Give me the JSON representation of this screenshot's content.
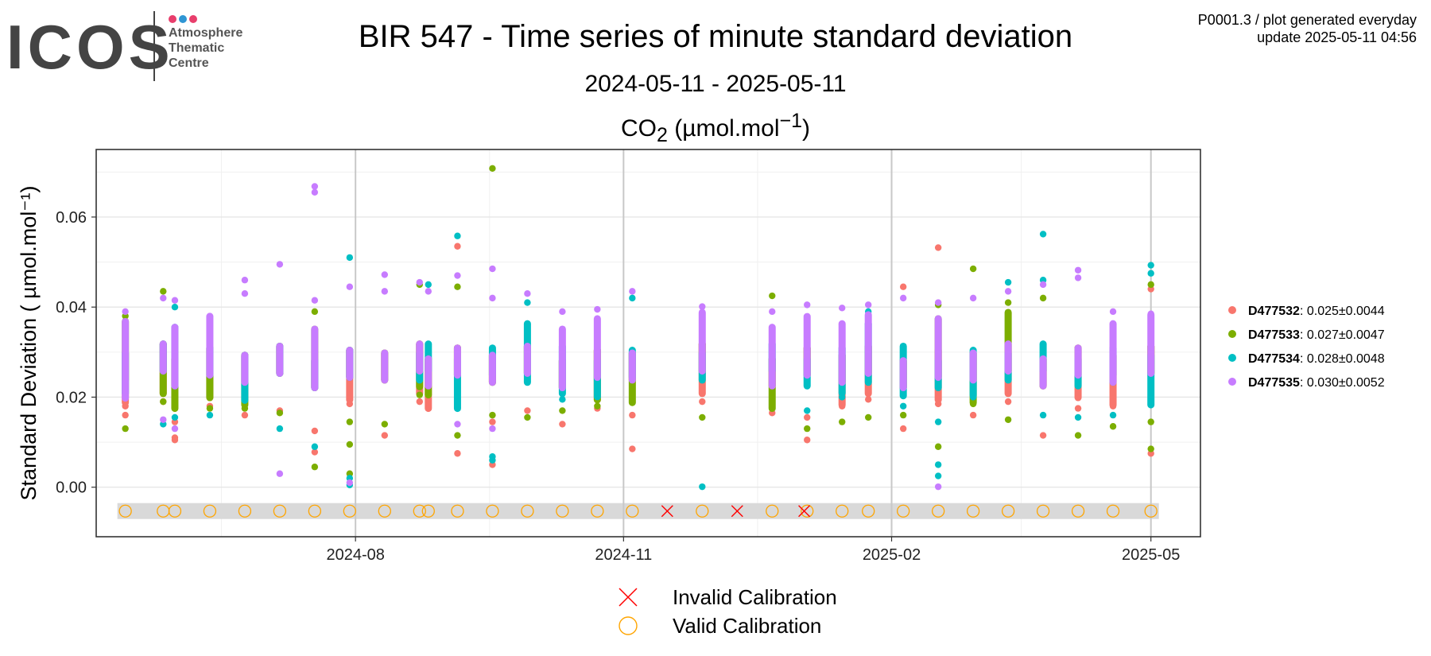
{
  "logo": {
    "text": "ICOS",
    "sub_lines": [
      "Atmosphere",
      "Thematic",
      "Centre"
    ],
    "dot_colors": [
      "#e83e6c",
      "#2f96d4",
      "#e83e6c"
    ]
  },
  "header": {
    "title": "BIR 547 - Time series of minute standard deviation",
    "date_range": "2024-05-11 - 2025-05-11",
    "gas_label": "CO",
    "gas_sub": "2",
    "gas_unit_pre": " (µmol.mol",
    "gas_unit_sup": "−1",
    "gas_unit_post": ")",
    "meta_line1": "P0001.3 / plot generated everyday",
    "meta_line2": "update  2025-05-11 04:56"
  },
  "chart_data": {
    "type": "scatter",
    "title": "BIR 547 - Time series of minute standard deviation",
    "ylabel": "Standard Deviation ( µmol.mol⁻¹)",
    "xlabel": "",
    "x_range": [
      "2024-05-11",
      "2025-05-11"
    ],
    "ylim": [
      -0.011,
      0.075
    ],
    "yticks": [
      0.0,
      0.02,
      0.04,
      0.06
    ],
    "ytick_labels": [
      "0.00",
      "0.02",
      "0.04",
      "0.06"
    ],
    "xticks": [
      "2024-08-01",
      "2024-11-01",
      "2025-02-01",
      "2025-05-01"
    ],
    "xtick_labels": [
      "2024-08",
      "2024-11",
      "2025-02",
      "2025-05"
    ],
    "grid": true,
    "legend_position": "right",
    "series": [
      {
        "name": "D477532",
        "stat": ": 0.025±0.0044",
        "color": "#f8766d",
        "points": [
          [
            "2024-05-14",
            0.018
          ],
          [
            "2024-05-14",
            0.016
          ],
          [
            "2024-05-27",
            0.019
          ],
          [
            "2024-05-31",
            0.011
          ],
          [
            "2024-05-31",
            0.0105
          ],
          [
            "2024-05-31",
            0.0145
          ],
          [
            "2024-06-12",
            0.018
          ],
          [
            "2024-06-24",
            0.016
          ],
          [
            "2024-07-06",
            0.017
          ],
          [
            "2024-07-18",
            0.0078
          ],
          [
            "2024-07-18",
            0.0125
          ],
          [
            "2024-07-30",
            0.0185
          ],
          [
            "2024-08-11",
            0.0115
          ],
          [
            "2024-08-23",
            0.019
          ],
          [
            "2024-08-26",
            0.018
          ],
          [
            "2024-09-05",
            0.0535
          ],
          [
            "2024-09-05",
            0.0075
          ],
          [
            "2024-09-17",
            0.005
          ],
          [
            "2024-09-17",
            0.0145
          ],
          [
            "2024-09-29",
            0.017
          ],
          [
            "2024-10-11",
            0.014
          ],
          [
            "2024-10-23",
            0.0175
          ],
          [
            "2024-11-04",
            0.0085
          ],
          [
            "2024-11-04",
            0.016
          ],
          [
            "2024-11-28",
            0.019
          ],
          [
            "2024-12-22",
            0.0165
          ],
          [
            "2025-01-03",
            0.0105
          ],
          [
            "2025-01-03",
            0.0155
          ],
          [
            "2025-01-15",
            0.018
          ],
          [
            "2025-01-24",
            0.0195
          ],
          [
            "2025-02-05",
            0.013
          ],
          [
            "2025-02-05",
            0.0445
          ],
          [
            "2025-02-17",
            0.0532
          ],
          [
            "2025-02-17",
            0.0185
          ],
          [
            "2025-03-01",
            0.016
          ],
          [
            "2025-03-13",
            0.019
          ],
          [
            "2025-03-25",
            0.0115
          ],
          [
            "2025-04-06",
            0.0175
          ],
          [
            "2025-04-18",
            0.018
          ],
          [
            "2025-05-01",
            0.0075
          ],
          [
            "2025-05-01",
            0.044
          ]
        ]
      },
      {
        "name": "D477533",
        "stat": ": 0.027±0.0047",
        "color": "#7cae00",
        "points": [
          [
            "2024-05-14",
            0.013
          ],
          [
            "2024-05-14",
            0.038
          ],
          [
            "2024-05-27",
            0.0435
          ],
          [
            "2024-05-27",
            0.019
          ],
          [
            "2024-05-31",
            0.018
          ],
          [
            "2024-06-12",
            0.0175
          ],
          [
            "2024-06-24",
            0.0175
          ],
          [
            "2024-07-06",
            0.0165
          ],
          [
            "2024-07-18",
            0.0045
          ],
          [
            "2024-07-18",
            0.039
          ],
          [
            "2024-07-30",
            0.003
          ],
          [
            "2024-07-30",
            0.0095
          ],
          [
            "2024-07-30",
            0.0145
          ],
          [
            "2024-08-11",
            0.014
          ],
          [
            "2024-08-23",
            0.0205
          ],
          [
            "2024-08-23",
            0.045
          ],
          [
            "2024-08-26",
            0.022
          ],
          [
            "2024-09-05",
            0.0115
          ],
          [
            "2024-09-05",
            0.0445
          ],
          [
            "2024-09-17",
            0.0708
          ],
          [
            "2024-09-17",
            0.016
          ],
          [
            "2024-09-29",
            0.0155
          ],
          [
            "2024-10-11",
            0.017
          ],
          [
            "2024-10-23",
            0.018
          ],
          [
            "2024-11-04",
            0.019
          ],
          [
            "2024-11-28",
            0.0155
          ],
          [
            "2024-12-22",
            0.0425
          ],
          [
            "2024-12-22",
            0.018
          ],
          [
            "2025-01-03",
            0.013
          ],
          [
            "2025-01-15",
            0.0145
          ],
          [
            "2025-01-24",
            0.0155
          ],
          [
            "2025-02-05",
            0.016
          ],
          [
            "2025-02-17",
            0.009
          ],
          [
            "2025-02-17",
            0.0405
          ],
          [
            "2025-03-01",
            0.0485
          ],
          [
            "2025-03-01",
            0.0185
          ],
          [
            "2025-03-13",
            0.015
          ],
          [
            "2025-03-13",
            0.041
          ],
          [
            "2025-03-25",
            0.042
          ],
          [
            "2025-04-06",
            0.0115
          ],
          [
            "2025-04-18",
            0.0135
          ],
          [
            "2025-05-01",
            0.0145
          ],
          [
            "2025-05-01",
            0.045
          ],
          [
            "2025-05-01",
            0.0085
          ]
        ]
      },
      {
        "name": "D477534",
        "stat": ": 0.028±0.0048",
        "color": "#00bfc4",
        "points": [
          [
            "2024-05-14",
            0.021
          ],
          [
            "2024-05-27",
            0.014
          ],
          [
            "2024-05-31",
            0.0155
          ],
          [
            "2024-05-31",
            0.04
          ],
          [
            "2024-06-12",
            0.016
          ],
          [
            "2024-06-24",
            0.02
          ],
          [
            "2024-07-06",
            0.013
          ],
          [
            "2024-07-18",
            0.009
          ],
          [
            "2024-07-30",
            0.051
          ],
          [
            "2024-07-30",
            0.002
          ],
          [
            "2024-07-30",
            0.0005
          ],
          [
            "2024-08-23",
            0.025
          ],
          [
            "2024-08-26",
            0.045
          ],
          [
            "2024-09-05",
            0.0558
          ],
          [
            "2024-09-05",
            0.0185
          ],
          [
            "2024-09-17",
            0.0068
          ],
          [
            "2024-09-17",
            0.006
          ],
          [
            "2024-09-29",
            0.041
          ],
          [
            "2024-10-11",
            0.0195
          ],
          [
            "2024-10-23",
            0.022
          ],
          [
            "2024-11-04",
            0.042
          ],
          [
            "2024-11-28",
            0.0001
          ],
          [
            "2024-12-22",
            0.025
          ],
          [
            "2025-01-03",
            0.017
          ],
          [
            "2025-01-15",
            0.02
          ],
          [
            "2025-01-24",
            0.039
          ],
          [
            "2025-02-05",
            0.018
          ],
          [
            "2025-02-17",
            0.0025
          ],
          [
            "2025-02-17",
            0.005
          ],
          [
            "2025-02-17",
            0.0145
          ],
          [
            "2025-03-01",
            0.02
          ],
          [
            "2025-03-13",
            0.0455
          ],
          [
            "2025-03-25",
            0.0562
          ],
          [
            "2025-03-25",
            0.046
          ],
          [
            "2025-03-25",
            0.016
          ],
          [
            "2025-04-06",
            0.0155
          ],
          [
            "2025-04-18",
            0.016
          ],
          [
            "2025-05-01",
            0.0493
          ],
          [
            "2025-05-01",
            0.0475
          ],
          [
            "2025-05-01",
            0.019
          ]
        ]
      },
      {
        "name": "D477535",
        "stat": ": 0.030±0.0052",
        "color": "#c77cff",
        "points": [
          [
            "2024-05-14",
            0.039
          ],
          [
            "2024-05-14",
            0.02
          ],
          [
            "2024-05-27",
            0.042
          ],
          [
            "2024-05-27",
            0.015
          ],
          [
            "2024-05-31",
            0.0415
          ],
          [
            "2024-05-31",
            0.013
          ],
          [
            "2024-06-12",
            0.038
          ],
          [
            "2024-06-24",
            0.046
          ],
          [
            "2024-06-24",
            0.043
          ],
          [
            "2024-07-06",
            0.0495
          ],
          [
            "2024-07-06",
            0.003
          ],
          [
            "2024-07-18",
            0.0668
          ],
          [
            "2024-07-18",
            0.0655
          ],
          [
            "2024-07-18",
            0.0415
          ],
          [
            "2024-07-30",
            0.0445
          ],
          [
            "2024-07-30",
            0.001
          ],
          [
            "2024-08-11",
            0.0472
          ],
          [
            "2024-08-11",
            0.0435
          ],
          [
            "2024-08-23",
            0.0455
          ],
          [
            "2024-08-26",
            0.0435
          ],
          [
            "2024-09-05",
            0.047
          ],
          [
            "2024-09-05",
            0.014
          ],
          [
            "2024-09-17",
            0.0485
          ],
          [
            "2024-09-17",
            0.042
          ],
          [
            "2024-09-17",
            0.013
          ],
          [
            "2024-09-29",
            0.043
          ],
          [
            "2024-10-11",
            0.039
          ],
          [
            "2024-10-23",
            0.0395
          ],
          [
            "2024-11-04",
            0.0435
          ],
          [
            "2024-11-28",
            0.0401
          ],
          [
            "2024-12-22",
            0.039
          ],
          [
            "2025-01-03",
            0.0405
          ],
          [
            "2025-01-15",
            0.0398
          ],
          [
            "2025-01-24",
            0.0405
          ],
          [
            "2025-02-05",
            0.042
          ],
          [
            "2025-02-17",
            0.041
          ],
          [
            "2025-02-17",
            0.0001
          ],
          [
            "2025-03-01",
            0.042
          ],
          [
            "2025-03-13",
            0.0435
          ],
          [
            "2025-03-25",
            0.045
          ],
          [
            "2025-04-06",
            0.0482
          ],
          [
            "2025-04-06",
            0.0465
          ],
          [
            "2025-04-18",
            0.039
          ],
          [
            "2025-05-01",
            0.0385
          ],
          [
            "2025-05-01",
            0.038
          ]
        ]
      }
    ],
    "calibrations": {
      "valid_color": "#ffa500",
      "invalid_color": "#ff0000",
      "valid_dates": [
        "2024-05-14",
        "2024-05-27",
        "2024-05-31",
        "2024-06-12",
        "2024-06-24",
        "2024-07-06",
        "2024-07-18",
        "2024-07-30",
        "2024-08-11",
        "2024-08-23",
        "2024-08-26",
        "2024-09-05",
        "2024-09-17",
        "2024-09-29",
        "2024-10-11",
        "2024-10-23",
        "2024-11-04",
        "2024-11-28",
        "2024-12-22",
        "2025-01-03",
        "2025-01-15",
        "2025-01-24",
        "2025-02-05",
        "2025-02-17",
        "2025-03-01",
        "2025-03-13",
        "2025-03-25",
        "2025-04-06",
        "2025-04-18",
        "2025-05-01"
      ],
      "invalid_dates": [
        "2024-11-16",
        "2024-12-10",
        "2025-01-02"
      ]
    },
    "legend_bottom": [
      {
        "label": "Invalid Calibration",
        "symbol": "cross"
      },
      {
        "label": "Valid Calibration",
        "symbol": "circle"
      }
    ]
  }
}
